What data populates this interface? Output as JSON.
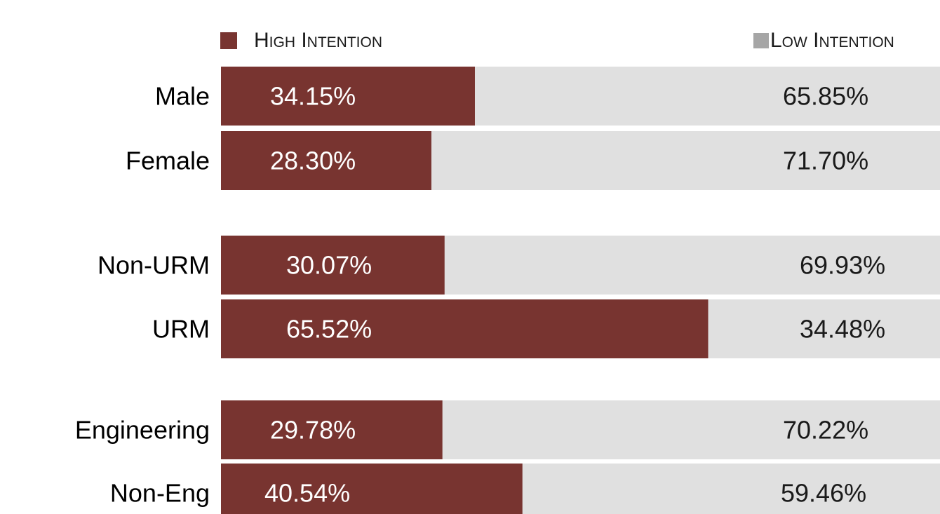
{
  "chart_data": {
    "type": "bar",
    "orientation": "horizontal",
    "stacked": true,
    "categories": [
      "Male",
      "Female",
      "Non-URM",
      "URM",
      "Engineering",
      "Non-Eng"
    ],
    "series": [
      {
        "name": "High Intention",
        "values": [
          34.15,
          28.3,
          30.07,
          65.52,
          29.78,
          40.54
        ],
        "labels": [
          "34.15%",
          "28.30%",
          "30.07%",
          "65.52%",
          "29.78%",
          "40.54%"
        ],
        "color": "#783430"
      },
      {
        "name": "Low Intention",
        "values": [
          65.85,
          71.7,
          69.93,
          34.48,
          70.22,
          59.46
        ],
        "labels": [
          "65.85%",
          "71.70%",
          "69.93%",
          "34.48%",
          "70.22%",
          "59.46%"
        ],
        "color": "#e0e0e0"
      }
    ],
    "legend_position": "top",
    "legend_swatch_colors": [
      "#783430",
      "#a6a6a6"
    ],
    "title": "",
    "xlabel": "",
    "ylabel": "",
    "xlim": [
      0,
      100
    ],
    "grid": false
  }
}
